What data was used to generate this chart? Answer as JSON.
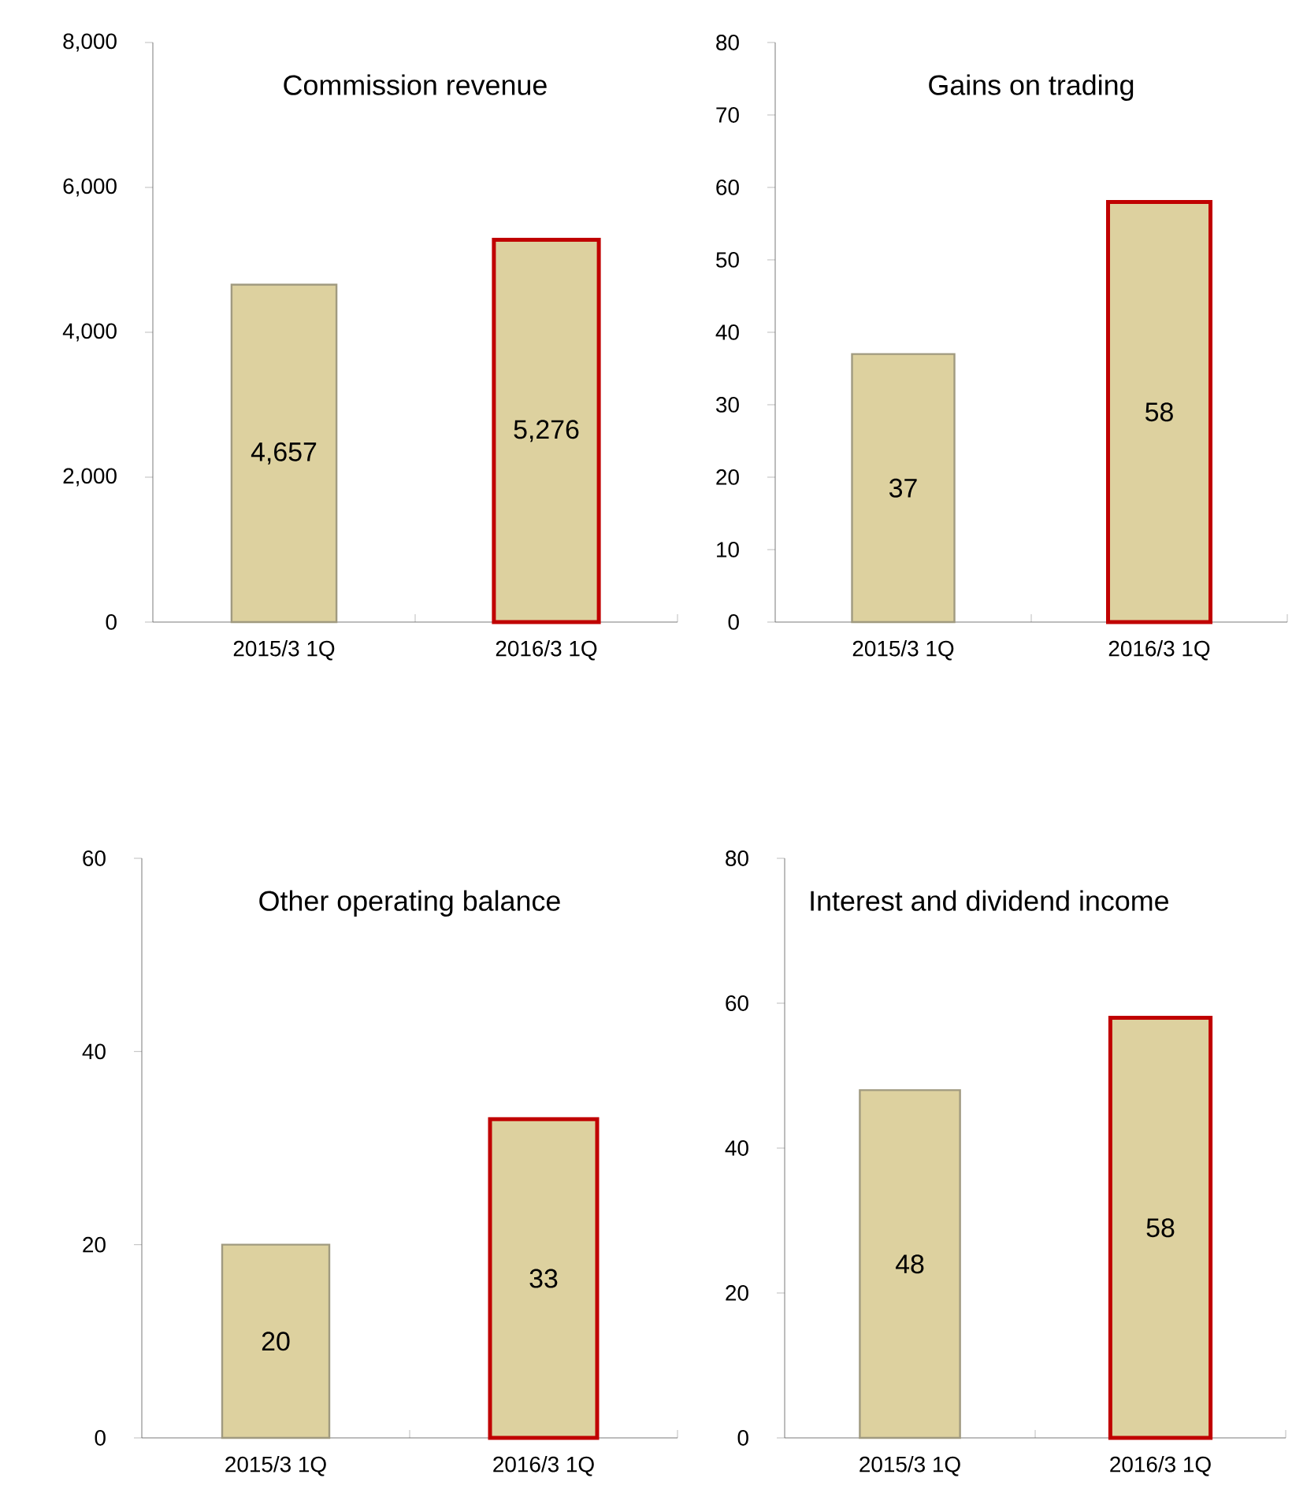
{
  "chart_data": [
    {
      "type": "bar",
      "title": "Commission revenue",
      "categories": [
        "2015/3 1Q",
        "2016/3 1Q"
      ],
      "values": [
        4657,
        5276
      ],
      "value_labels": [
        "4,657",
        "5,276"
      ],
      "color": "#ddd19f",
      "ylim": [
        0,
        8000
      ],
      "yticks": [
        0,
        {
          "value": 2000,
          "label": "2,000"
        },
        {
          "value": 4000,
          "label": "4,000"
        },
        {
          "value": 6000,
          "label": "6,000"
        },
        {
          "value": 8000,
          "label": "8,000"
        }
      ]
    },
    {
      "type": "bar",
      "title": "Gains on trading",
      "categories": [
        "2015/3 1Q",
        "2016/3 1Q"
      ],
      "values": [
        37,
        58
      ],
      "data_labels": true,
      "color": "#ddd19f",
      "ylim": [
        0,
        80
      ],
      "yticks": [
        0,
        10,
        20,
        30,
        40,
        50,
        60,
        70,
        80
      ]
    },
    {
      "type": "bar",
      "title": "Other operating balance",
      "categories": [
        "2015/3 1Q",
        "2016/3 1Q"
      ],
      "values": [
        20,
        33
      ],
      "data_labels": true,
      "color": "#ddd19f",
      "ylim": [
        0,
        60
      ],
      "yticks": [
        0,
        20,
        40,
        60
      ]
    },
    {
      "type": "bar",
      "title": "Interest and dividend income",
      "categories": [
        "2015/3 1Q",
        "2016/3 1Q"
      ],
      "values": [
        48,
        58
      ],
      "data_labels": true,
      "color": "#ddd19f",
      "ylim": [
        0,
        80
      ],
      "yticks": [
        0,
        20,
        40,
        60,
        80
      ]
    }
  ]
}
